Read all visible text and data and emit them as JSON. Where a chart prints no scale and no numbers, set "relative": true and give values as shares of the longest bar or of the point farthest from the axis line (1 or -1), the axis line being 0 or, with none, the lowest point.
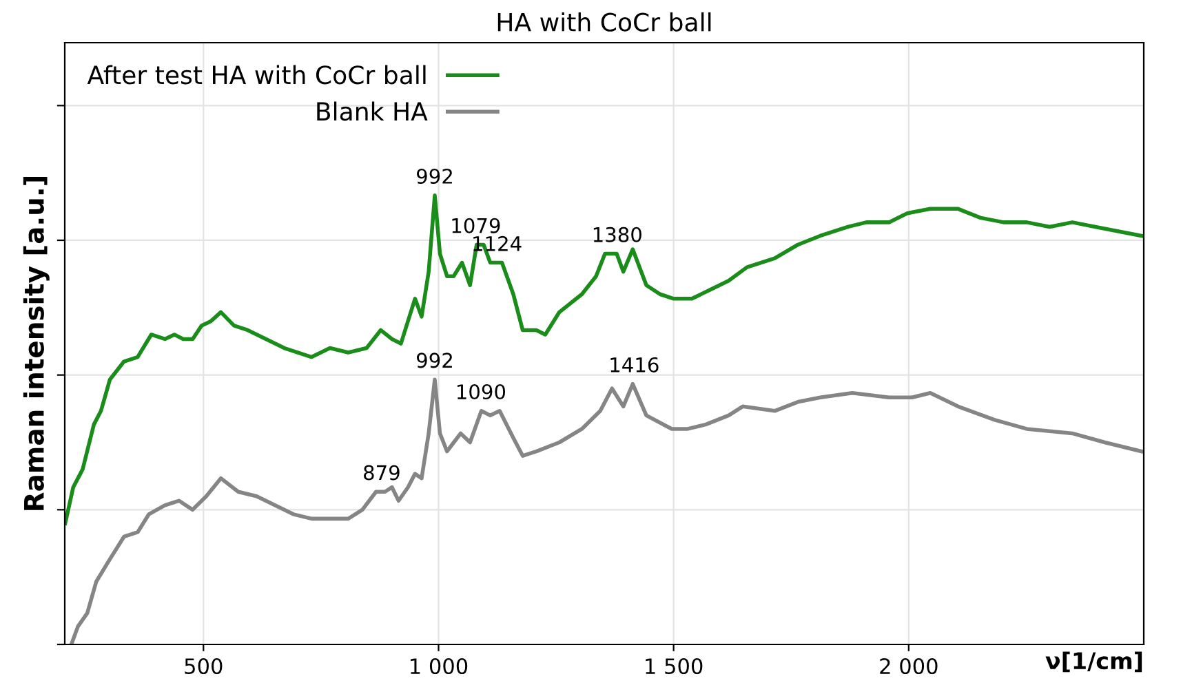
{
  "chart_data": {
    "type": "line",
    "title": "HA with CoCr ball",
    "xlabel": "ν[1/cm]",
    "ylabel": "Raman intensity [a.u.]",
    "relative": true,
    "xlim": [
      205,
      2500
    ],
    "xticks": [
      500,
      {
        "value": 1000,
        "label": "1 000"
      },
      {
        "value": 1500,
        "label": "1 500"
      },
      {
        "value": 2000,
        "label": "2 000"
      }
    ],
    "grid": true,
    "legend": "top left",
    "marker": "none",
    "line_style": "solid",
    "series": [
      {
        "name": "After test HA with CoCr ball",
        "color": "#1a8c1a",
        "x": [
          206,
          223,
          243,
          267,
          282,
          301,
          331,
          360,
          389,
          418,
          438,
          457,
          477,
          496,
          516,
          537,
          565,
          594,
          633,
          672,
          701,
          730,
          769,
          808,
          847,
          877,
          901,
          920,
          950,
          964,
          979,
          992,
          1003,
          1018,
          1032,
          1050,
          1067,
          1081,
          1096,
          1110,
          1135,
          1159,
          1179,
          1208,
          1227,
          1257,
          1305,
          1335,
          1354,
          1379,
          1393,
          1413,
          1442,
          1471,
          1500,
          1539,
          1578,
          1617,
          1656,
          1715,
          1764,
          1812,
          1871,
          1910,
          1958,
          1997,
          2046,
          2105,
          2153,
          2202,
          2251,
          2300,
          2348,
          2397,
          2446,
          2495
        ],
        "values": [
          0.27,
          0.35,
          0.39,
          0.49,
          0.52,
          0.59,
          0.63,
          0.64,
          0.69,
          0.68,
          0.69,
          0.68,
          0.68,
          0.71,
          0.72,
          0.74,
          0.71,
          0.7,
          0.68,
          0.66,
          0.65,
          0.64,
          0.66,
          0.65,
          0.66,
          0.7,
          0.68,
          0.67,
          0.77,
          0.73,
          0.83,
          1.0,
          0.87,
          0.82,
          0.82,
          0.85,
          0.8,
          0.89,
          0.89,
          0.85,
          0.85,
          0.78,
          0.7,
          0.7,
          0.69,
          0.74,
          0.78,
          0.82,
          0.87,
          0.87,
          0.83,
          0.88,
          0.8,
          0.78,
          0.77,
          0.77,
          0.79,
          0.81,
          0.84,
          0.86,
          0.89,
          0.91,
          0.93,
          0.94,
          0.94,
          0.96,
          0.97,
          0.97,
          0.95,
          0.94,
          0.94,
          0.93,
          0.94,
          0.93,
          0.92,
          0.91
        ]
      },
      {
        "name": "Blank HA",
        "color": "#858585",
        "x": [
          219,
          233,
          253,
          272,
          301,
          331,
          360,
          384,
          418,
          448,
          477,
          506,
          537,
          574,
          613,
          652,
          691,
          730,
          769,
          808,
          838,
          867,
          886,
          901,
          915,
          935,
          950,
          964,
          979,
          992,
          1003,
          1018,
          1047,
          1067,
          1091,
          1110,
          1130,
          1159,
          1179,
          1208,
          1257,
          1305,
          1344,
          1369,
          1393,
          1413,
          1442,
          1496,
          1530,
          1569,
          1617,
          1647,
          1715,
          1764,
          1812,
          1880,
          1958,
          2007,
          2046,
          2105,
          2183,
          2251,
          2348,
          2417,
          2495
        ],
        "values": [
          0.0,
          0.04,
          0.07,
          0.14,
          0.19,
          0.24,
          0.25,
          0.29,
          0.31,
          0.32,
          0.3,
          0.33,
          0.37,
          0.34,
          0.33,
          0.31,
          0.29,
          0.28,
          0.28,
          0.28,
          0.3,
          0.34,
          0.34,
          0.35,
          0.32,
          0.35,
          0.38,
          0.37,
          0.47,
          0.59,
          0.47,
          0.43,
          0.47,
          0.45,
          0.52,
          0.51,
          0.52,
          0.46,
          0.42,
          0.43,
          0.45,
          0.48,
          0.52,
          0.57,
          0.53,
          0.58,
          0.51,
          0.48,
          0.48,
          0.49,
          0.51,
          0.53,
          0.52,
          0.54,
          0.55,
          0.56,
          0.55,
          0.55,
          0.56,
          0.53,
          0.5,
          0.48,
          0.47,
          0.45,
          0.43
        ]
      }
    ],
    "annotations": [
      {
        "text": "992",
        "x": 992,
        "y": 1.0
      },
      {
        "text": "1079",
        "x": 1079,
        "y": 0.89
      },
      {
        "text": "1124",
        "x": 1124,
        "y": 0.85
      },
      {
        "text": "1380",
        "x": 1380,
        "y": 0.87
      },
      {
        "text": "879",
        "x": 879,
        "y": 0.34
      },
      {
        "text": "992",
        "x": 992,
        "y": 0.59
      },
      {
        "text": "1090",
        "x": 1090,
        "y": 0.52
      },
      {
        "text": "1416",
        "x": 1416,
        "y": 0.58
      }
    ]
  }
}
